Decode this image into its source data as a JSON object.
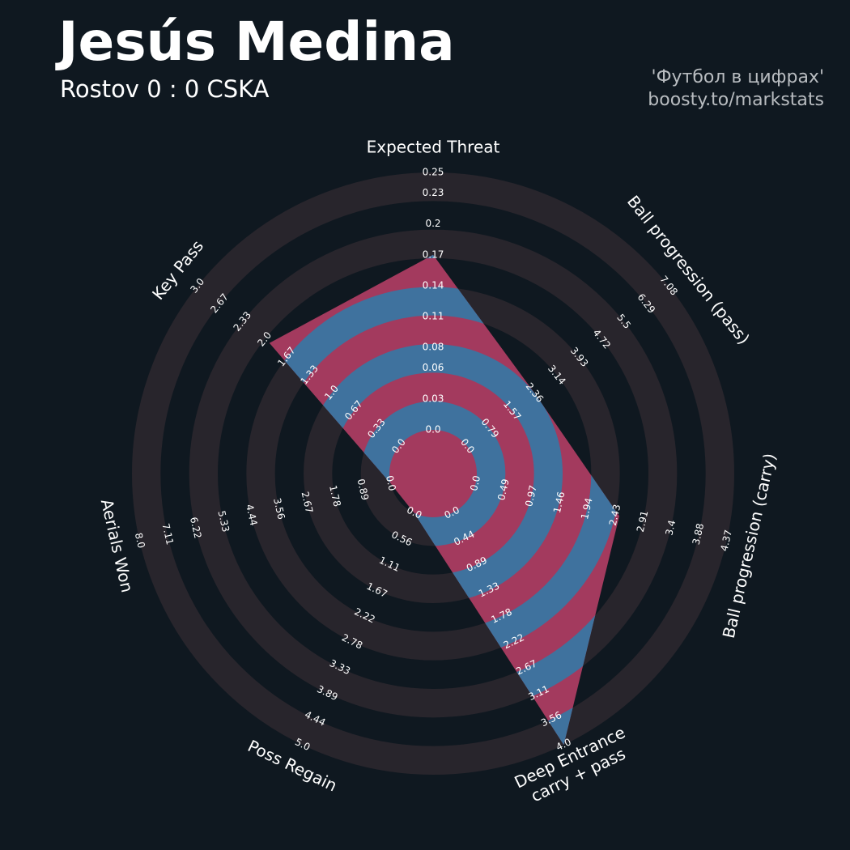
{
  "chart_data": {
    "type": "radar",
    "title": "Jesús Medina",
    "subtitle": "Rostov 0 : 0 CSKA",
    "credits": [
      "'Футбол в цифрах'",
      "boosty.to/markstats"
    ],
    "params": [
      "Expected Threat",
      "Ball progression (pass)",
      "Ball progression (carry)",
      "Deep Entrance\ncarry + pass",
      "Poss Regain",
      "Aerials Won",
      "Key Pass"
    ],
    "values": [
      0.17,
      2.36,
      2.5,
      4.0,
      0,
      0,
      1.93
    ],
    "lims": [
      [
        0,
        0.25
      ],
      [
        0,
        7.08
      ],
      [
        0,
        4.37
      ],
      [
        0,
        4.0
      ],
      [
        0,
        5.0
      ],
      [
        0,
        8.0
      ],
      [
        0,
        3.0
      ]
    ],
    "ticks": [
      [
        {
          "value": 0,
          "label": "0.0"
        },
        0.03,
        0.06,
        0.08,
        0.11,
        0.14,
        0.17,
        0.2,
        0.23,
        0.25
      ],
      [
        {
          "value": 0,
          "label": "0.0"
        },
        0.79,
        1.57,
        2.36,
        3.14,
        3.93,
        4.72,
        5.5,
        6.29,
        7.08
      ],
      [
        {
          "value": 0,
          "label": "0.0"
        },
        0.49,
        0.97,
        1.46,
        1.94,
        2.43,
        2.91,
        3.4,
        3.88,
        4.37
      ],
      [
        {
          "value": 0,
          "label": "0.0"
        },
        0.44,
        0.89,
        1.33,
        1.78,
        2.22,
        2.67,
        3.11,
        3.56,
        {
          "value": 4,
          "label": "4.0"
        }
      ],
      [
        {
          "value": 0,
          "label": "0.0"
        },
        0.56,
        1.11,
        1.67,
        2.22,
        2.78,
        3.33,
        3.89,
        4.44,
        {
          "value": 5,
          "label": "5.0"
        }
      ],
      [
        {
          "value": 0,
          "label": "0.0"
        },
        0.89,
        1.78,
        2.67,
        3.56,
        4.44,
        5.33,
        6.22,
        7.11,
        {
          "value": 8,
          "label": "8.0"
        }
      ],
      [
        {
          "value": 0,
          "label": "0.0"
        },
        0.33,
        0.67,
        {
          "value": 1,
          "label": "1.0"
        },
        1.33,
        1.67,
        {
          "value": 2,
          "label": "2.0"
        },
        2.33,
        2.67,
        {
          "value": 3,
          "label": "3.0"
        }
      ]
    ],
    "color": "#a33a5e",
    "ring_color": "#3f729e",
    "background_ring_color": "#28252c"
  }
}
